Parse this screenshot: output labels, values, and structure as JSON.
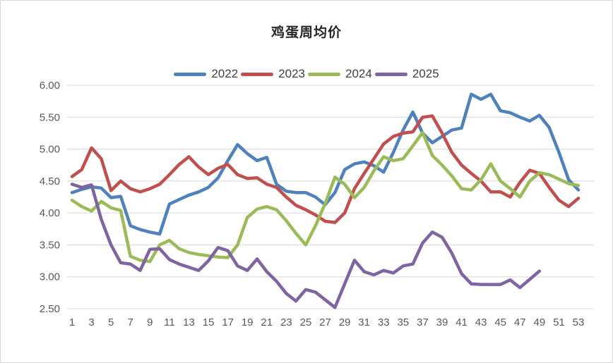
{
  "title": "鸡蛋周均价",
  "legend": {
    "items": [
      {
        "label": "2022",
        "color": "#4F81BD"
      },
      {
        "label": "2023",
        "color": "#C0504D"
      },
      {
        "label": "2024",
        "color": "#9BBB59"
      },
      {
        "label": "2025",
        "color": "#8064A2"
      }
    ],
    "position": "top"
  },
  "axis": {
    "y_tick_labels": [
      "6.00",
      "5.50",
      "5.00",
      "4.50",
      "4.00",
      "3.50",
      "3.00",
      "2.50"
    ],
    "x_tick_labels": [
      "1",
      "3",
      "5",
      "7",
      "9",
      "11",
      "13",
      "15",
      "17",
      "19",
      "21",
      "23",
      "25",
      "27",
      "29",
      "31",
      "33",
      "35",
      "37",
      "39",
      "41",
      "43",
      "45",
      "47",
      "49",
      "51",
      "53"
    ],
    "tick_color": "#595959",
    "grid_color": "#d9d9d9"
  },
  "chart_data": {
    "type": "line",
    "title": "鸡蛋周均价",
    "xlabel": "",
    "ylabel": "",
    "x_range": [
      1,
      53
    ],
    "ylim": [
      2.5,
      6.0
    ],
    "y_ticks": [
      6.0,
      5.5,
      5.0,
      4.5,
      4.0,
      3.5,
      3.0,
      2.5
    ],
    "x_ticks": [
      1,
      3,
      5,
      7,
      9,
      11,
      13,
      15,
      17,
      19,
      21,
      23,
      25,
      27,
      29,
      31,
      33,
      35,
      37,
      39,
      41,
      43,
      45,
      47,
      49,
      51,
      53
    ],
    "grid": true,
    "legend_position": "top",
    "series": [
      {
        "name": "2022",
        "color": "#4F81BD",
        "x_start": 1,
        "values": [
          4.32,
          4.37,
          4.41,
          4.39,
          4.24,
          4.26,
          3.8,
          3.74,
          3.7,
          3.67,
          4.14,
          4.21,
          4.28,
          4.33,
          4.4,
          4.55,
          4.82,
          5.07,
          4.93,
          4.82,
          4.87,
          4.45,
          4.34,
          4.32,
          4.32,
          4.25,
          4.13,
          4.32,
          4.68,
          4.77,
          4.8,
          4.74,
          4.64,
          4.95,
          5.3,
          5.58,
          5.25,
          5.1,
          5.2,
          5.3,
          5.33,
          5.86,
          5.78,
          5.86,
          5.6,
          5.57,
          5.5,
          5.44,
          5.53,
          5.34,
          4.95,
          4.52,
          4.36
        ]
      },
      {
        "name": "2023",
        "color": "#C0504D",
        "x_start": 1,
        "values": [
          4.57,
          4.68,
          5.02,
          4.85,
          4.35,
          4.5,
          4.38,
          4.33,
          4.38,
          4.45,
          4.6,
          4.76,
          4.88,
          4.72,
          4.6,
          4.7,
          4.76,
          4.6,
          4.54,
          4.55,
          4.45,
          4.4,
          4.25,
          4.12,
          4.05,
          3.97,
          3.87,
          3.85,
          4.0,
          4.38,
          4.62,
          4.85,
          5.08,
          5.2,
          5.25,
          5.27,
          5.5,
          5.52,
          5.25,
          4.95,
          4.75,
          4.62,
          4.5,
          4.33,
          4.33,
          4.25,
          4.48,
          4.67,
          4.62,
          4.4,
          4.2,
          4.1,
          4.23
        ]
      },
      {
        "name": "2024",
        "color": "#9BBB59",
        "x_start": 1,
        "values": [
          4.2,
          4.1,
          4.03,
          4.18,
          4.08,
          4.04,
          3.32,
          3.26,
          3.24,
          3.5,
          3.57,
          3.44,
          3.38,
          3.35,
          3.33,
          3.31,
          3.3,
          3.5,
          3.93,
          4.06,
          4.1,
          4.05,
          3.88,
          3.68,
          3.5,
          3.8,
          4.15,
          4.56,
          4.45,
          4.24,
          4.4,
          4.66,
          4.88,
          4.82,
          4.85,
          5.05,
          5.26,
          4.9,
          4.75,
          4.58,
          4.38,
          4.36,
          4.52,
          4.77,
          4.5,
          4.38,
          4.25,
          4.5,
          4.63,
          4.6,
          4.53,
          4.46,
          4.43
        ]
      },
      {
        "name": "2025",
        "color": "#8064A2",
        "x_start": 1,
        "values": [
          4.45,
          4.4,
          4.44,
          3.9,
          3.5,
          3.22,
          3.2,
          3.1,
          3.43,
          3.44,
          3.27,
          3.2,
          3.15,
          3.1,
          3.25,
          3.46,
          3.41,
          3.17,
          3.1,
          3.28,
          3.08,
          2.93,
          2.74,
          2.62,
          2.8,
          2.76,
          2.64,
          2.52,
          2.89,
          3.26,
          3.08,
          3.03,
          3.1,
          3.06,
          3.17,
          3.2,
          3.53,
          3.7,
          3.62,
          3.37,
          3.05,
          2.89,
          2.88,
          2.88,
          2.88,
          2.95,
          2.83,
          2.96,
          3.09
        ]
      }
    ]
  }
}
